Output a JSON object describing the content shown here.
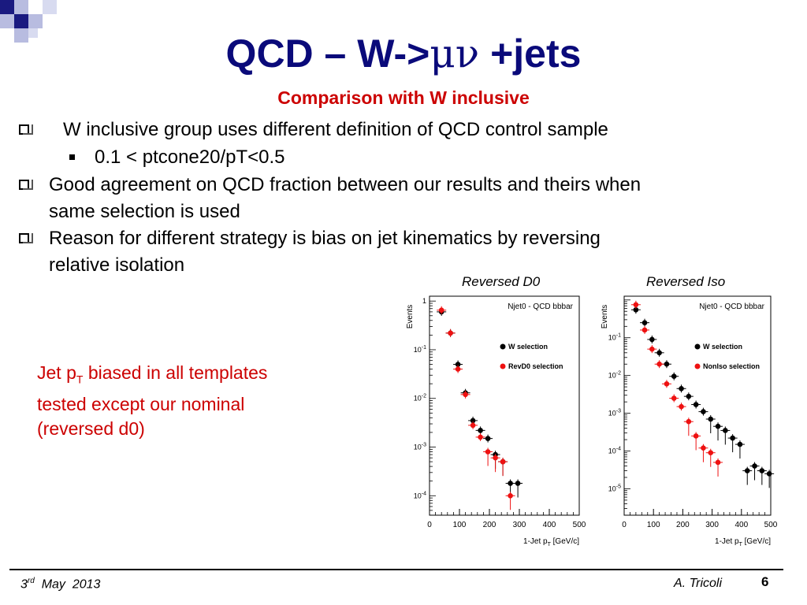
{
  "slide": {
    "title_prefix": "QCD – W->",
    "title_greek": "μν",
    "title_suffix": " +jets",
    "subtitle": "Comparison with W inclusive",
    "bullets": [
      "W inclusive group uses different definition of QCD control sample",
      "0.1 < ptcone20/pT<0.5",
      "Good agreement on QCD fraction between our results and theirs when",
      "same selection is used",
      "Reason for different strategy is bias on jet kinematics by reversing",
      "relative isolation"
    ],
    "note": {
      "line1_a": "Jet p",
      "line1_sub": "T",
      "line1_b": " biased in all templates",
      "line2": "tested except our nominal",
      "line3": "(reversed d0)"
    },
    "footer": {
      "date_day": "3",
      "date_sup": "rd",
      "date_rest": "  May  2013",
      "author": "A. Tricoli",
      "page": "6"
    },
    "colors": {
      "title": "#0a0a7a",
      "accent": "#cc0000"
    }
  },
  "chart_data": [
    {
      "type": "scatter",
      "title": "Reversed D0",
      "plot_label": "Njet0 - QCD bbbar",
      "ylabel": "Events",
      "xlabel_main": "1-Jet p",
      "xlabel_sub": "T",
      "xlabel_unit": "[GeV/c]",
      "xlim": [
        0,
        500
      ],
      "ylim_log10": [
        -4.4,
        0.1
      ],
      "xticks": [
        0,
        100,
        200,
        300,
        400,
        500
      ],
      "yticks": [
        {
          "exp": 0,
          "label": "1"
        },
        {
          "exp": -1,
          "label": "10",
          "sup": "-1"
        },
        {
          "exp": -2,
          "label": "10",
          "sup": "-2"
        },
        {
          "exp": -3,
          "label": "10",
          "sup": "-3"
        },
        {
          "exp": -4,
          "label": "10",
          "sup": "-4"
        }
      ],
      "legend_position": "upper-right",
      "series": [
        {
          "name": "W selection",
          "color": "#000000",
          "x": [
            40,
            70,
            95,
            120,
            145,
            170,
            195,
            220,
            245,
            270,
            295
          ],
          "y": [
            0.6,
            0.22,
            0.05,
            0.013,
            0.0035,
            0.0022,
            0.0015,
            0.0007,
            0.0005,
            0.00018,
            0.00018
          ]
        },
        {
          "name": "RevD0 selection",
          "color": "#ee1111",
          "x": [
            40,
            70,
            95,
            120,
            145,
            170,
            195,
            220,
            245,
            270
          ],
          "y": [
            0.65,
            0.22,
            0.04,
            0.012,
            0.0028,
            0.0016,
            0.0008,
            0.0006,
            0.0005,
            0.0001
          ]
        }
      ]
    },
    {
      "type": "scatter",
      "title": "Reversed Iso",
      "plot_label": "Njet0 - QCD bbbar",
      "ylabel": "Events",
      "xlabel_main": "1-Jet p",
      "xlabel_sub": "T",
      "xlabel_unit": "[GeV/c]",
      "xlim": [
        0,
        500
      ],
      "ylim_log10": [
        -5.7,
        0.1
      ],
      "xticks": [
        0,
        100,
        200,
        300,
        400,
        500
      ],
      "yticks": [
        {
          "exp": -1,
          "label": "10",
          "sup": "-1"
        },
        {
          "exp": -2,
          "label": "10",
          "sup": "-2"
        },
        {
          "exp": -3,
          "label": "10",
          "sup": "-3"
        },
        {
          "exp": -4,
          "label": "10",
          "sup": "-4"
        },
        {
          "exp": -5,
          "label": "10",
          "sup": "-5"
        }
      ],
      "legend_position": "upper-right",
      "series": [
        {
          "name": "W selection",
          "color": "#000000",
          "x": [
            40,
            70,
            95,
            120,
            145,
            170,
            195,
            220,
            245,
            270,
            295,
            320,
            345,
            370,
            395,
            420,
            445,
            470,
            495
          ],
          "y": [
            0.55,
            0.25,
            0.09,
            0.04,
            0.02,
            0.0095,
            0.0045,
            0.0028,
            0.0017,
            0.0011,
            0.0007,
            0.00045,
            0.00035,
            0.00022,
            0.00015,
            3e-05,
            4e-05,
            3e-05,
            2.5e-05
          ]
        },
        {
          "name": "NonIso selection",
          "color": "#ee1111",
          "x": [
            40,
            70,
            95,
            120,
            145,
            170,
            195,
            220,
            245,
            270,
            295,
            320
          ],
          "y": [
            0.75,
            0.16,
            0.05,
            0.02,
            0.006,
            0.0025,
            0.0015,
            0.0006,
            0.00025,
            0.00012,
            9e-05,
            5e-05
          ]
        }
      ]
    }
  ]
}
